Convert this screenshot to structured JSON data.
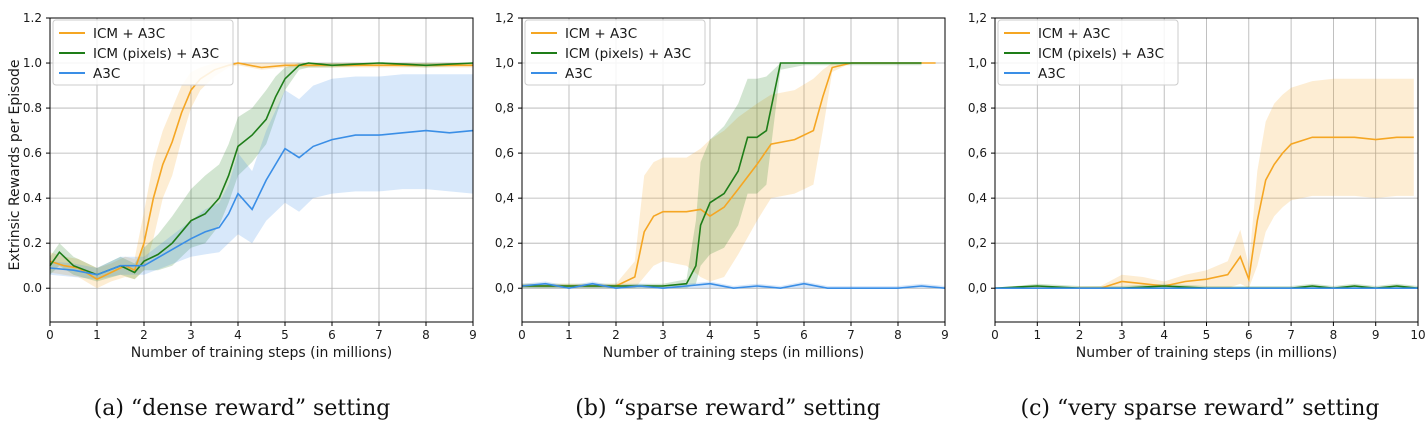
{
  "colors": {
    "icm": "#f5a623",
    "icm_pixels": "#1e7d18",
    "a3c": "#3a8ee6"
  },
  "chart_data": [
    {
      "type": "line",
      "caption": "(a) “dense reward” setting",
      "xlabel": "Number of training steps (in millions)",
      "ylabel": "Extrinsic Rewards per Episode",
      "xlim": [
        0,
        9
      ],
      "ylim": [
        -0.15,
        1.2
      ],
      "xticks": [
        0,
        1,
        2,
        3,
        4,
        5,
        6,
        7,
        8,
        9
      ],
      "yticks": [
        0.0,
        0.2,
        0.4,
        0.6,
        0.8,
        1.0,
        1.2
      ],
      "ytick_labels": [
        "0.0",
        "0.2",
        "0.4",
        "0.6",
        "0.8",
        "1.0",
        "1.2"
      ],
      "legend": [
        "ICM + A3C",
        "ICM (pixels) + A3C",
        "A3C"
      ],
      "legend_position": "top-left",
      "series": [
        {
          "name": "ICM + A3C",
          "color_key": "icm",
          "x": [
            0,
            0.3,
            0.6,
            1.0,
            1.3,
            1.6,
            1.8,
            2.0,
            2.2,
            2.4,
            2.6,
            2.8,
            3.0,
            3.2,
            3.5,
            3.8,
            4.0,
            4.5,
            5,
            6,
            7,
            8,
            9
          ],
          "y": [
            0.12,
            0.1,
            0.09,
            0.04,
            0.07,
            0.1,
            0.08,
            0.2,
            0.4,
            0.55,
            0.65,
            0.78,
            0.88,
            0.93,
            0.97,
            0.99,
            1.0,
            0.98,
            0.99,
            0.99,
            0.99,
            0.99,
            0.99
          ],
          "low": [
            0.07,
            0.06,
            0.05,
            0.0,
            0.03,
            0.05,
            0.04,
            0.08,
            0.22,
            0.4,
            0.5,
            0.66,
            0.8,
            0.88,
            0.94,
            0.98,
            0.99,
            0.97,
            0.98,
            0.98,
            0.98,
            0.98,
            0.98
          ],
          "high": [
            0.16,
            0.14,
            0.13,
            0.09,
            0.11,
            0.14,
            0.13,
            0.34,
            0.56,
            0.7,
            0.8,
            0.9,
            0.96,
            0.98,
            1.0,
            1.0,
            1.0,
            1.0,
            1.0,
            1.0,
            1.0,
            1.0,
            1.0
          ]
        },
        {
          "name": "ICM (pixels) + A3C",
          "color_key": "icm_pixels",
          "x": [
            0,
            0.2,
            0.5,
            1.0,
            1.5,
            1.8,
            2.0,
            2.3,
            2.6,
            3.0,
            3.3,
            3.6,
            3.8,
            4.0,
            4.3,
            4.6,
            4.8,
            5.0,
            5.3,
            5.5,
            6,
            7,
            8,
            9
          ],
          "y": [
            0.1,
            0.16,
            0.1,
            0.06,
            0.1,
            0.07,
            0.12,
            0.15,
            0.2,
            0.3,
            0.33,
            0.4,
            0.5,
            0.63,
            0.68,
            0.75,
            0.85,
            0.93,
            0.99,
            1.0,
            0.99,
            1.0,
            0.99,
            1.0
          ],
          "low": [
            0.06,
            0.1,
            0.06,
            0.03,
            0.06,
            0.04,
            0.08,
            0.08,
            0.1,
            0.18,
            0.2,
            0.28,
            0.38,
            0.5,
            0.56,
            0.64,
            0.76,
            0.88,
            0.97,
            0.98,
            0.98,
            0.99,
            0.98,
            0.99
          ],
          "high": [
            0.14,
            0.2,
            0.14,
            0.09,
            0.14,
            0.11,
            0.18,
            0.24,
            0.32,
            0.44,
            0.5,
            0.55,
            0.64,
            0.76,
            0.8,
            0.88,
            0.94,
            0.98,
            1.0,
            1.0,
            1.0,
            1.0,
            1.0,
            1.0
          ]
        },
        {
          "name": "A3C",
          "color_key": "a3c",
          "x": [
            0,
            0.5,
            1.0,
            1.5,
            2.0,
            2.5,
            3.0,
            3.3,
            3.6,
            3.8,
            4.0,
            4.3,
            4.6,
            5.0,
            5.3,
            5.6,
            6.0,
            6.5,
            7.0,
            7.5,
            8.0,
            8.5,
            9.0
          ],
          "y": [
            0.09,
            0.08,
            0.06,
            0.1,
            0.1,
            0.16,
            0.22,
            0.25,
            0.27,
            0.33,
            0.42,
            0.35,
            0.48,
            0.62,
            0.58,
            0.63,
            0.66,
            0.68,
            0.68,
            0.69,
            0.7,
            0.69,
            0.7
          ],
          "low": [
            0.06,
            0.05,
            0.04,
            0.06,
            0.06,
            0.1,
            0.14,
            0.15,
            0.16,
            0.2,
            0.24,
            0.2,
            0.3,
            0.38,
            0.34,
            0.4,
            0.42,
            0.43,
            0.43,
            0.44,
            0.44,
            0.43,
            0.42
          ],
          "high": [
            0.12,
            0.11,
            0.09,
            0.14,
            0.14,
            0.22,
            0.3,
            0.35,
            0.38,
            0.46,
            0.6,
            0.52,
            0.7,
            0.88,
            0.84,
            0.9,
            0.93,
            0.94,
            0.94,
            0.95,
            0.95,
            0.95,
            0.95
          ]
        }
      ]
    },
    {
      "type": "line",
      "caption": "(b) “sparse reward” setting",
      "xlabel": "Number of training steps (in millions)",
      "ylabel": "",
      "xlim": [
        0,
        9
      ],
      "ylim": [
        -0.15,
        1.2
      ],
      "xticks": [
        0,
        1,
        2,
        3,
        4,
        5,
        6,
        7,
        8,
        9
      ],
      "yticks": [
        0.0,
        0.2,
        0.4,
        0.6,
        0.8,
        1.0,
        1.2
      ],
      "ytick_labels": [
        "0,0",
        "0,2",
        "0,4",
        "0,6",
        "0,8",
        "1,0",
        "1,2"
      ],
      "legend": [
        "ICM + A3C",
        "ICM (pixels) + A3C",
        "A3C"
      ],
      "legend_position": "top-left",
      "series": [
        {
          "name": "ICM + A3C",
          "color_key": "icm",
          "x": [
            0,
            1.0,
            2.0,
            2.4,
            2.6,
            2.8,
            3.0,
            3.5,
            3.8,
            4.0,
            4.3,
            4.6,
            5.0,
            5.3,
            5.8,
            6.2,
            6.4,
            6.6,
            7.0,
            8.0,
            8.8
          ],
          "y": [
            0.01,
            0.01,
            0.01,
            0.05,
            0.25,
            0.32,
            0.34,
            0.34,
            0.35,
            0.32,
            0.36,
            0.44,
            0.55,
            0.64,
            0.66,
            0.7,
            0.85,
            0.98,
            1.0,
            1.0,
            1.0
          ],
          "low": [
            0.0,
            0.0,
            0.0,
            0.0,
            0.05,
            0.1,
            0.12,
            0.1,
            0.05,
            0.03,
            0.05,
            0.15,
            0.3,
            0.4,
            0.42,
            0.46,
            0.7,
            0.96,
            1.0,
            1.0,
            1.0
          ],
          "high": [
            0.02,
            0.02,
            0.02,
            0.12,
            0.5,
            0.56,
            0.58,
            0.58,
            0.62,
            0.66,
            0.7,
            0.76,
            0.82,
            0.86,
            0.88,
            0.93,
            0.97,
            1.0,
            1.0,
            1.0,
            1.0
          ]
        },
        {
          "name": "ICM (pixels) + A3C",
          "color_key": "icm_pixels",
          "x": [
            0,
            2.0,
            3.0,
            3.5,
            3.7,
            3.8,
            4.0,
            4.3,
            4.6,
            4.8,
            5.0,
            5.2,
            5.5,
            6.0,
            7.0,
            8.0,
            8.5
          ],
          "y": [
            0.01,
            0.01,
            0.01,
            0.02,
            0.1,
            0.28,
            0.38,
            0.42,
            0.52,
            0.67,
            0.67,
            0.7,
            1.0,
            1.0,
            1.0,
            1.0,
            1.0
          ],
          "low": [
            0.0,
            0.0,
            0.0,
            0.0,
            0.02,
            0.1,
            0.15,
            0.18,
            0.28,
            0.42,
            0.42,
            0.46,
            0.97,
            0.99,
            0.99,
            0.99,
            0.99
          ],
          "high": [
            0.02,
            0.02,
            0.02,
            0.04,
            0.3,
            0.56,
            0.66,
            0.72,
            0.82,
            0.93,
            0.93,
            0.94,
            1.0,
            1.0,
            1.0,
            1.0,
            1.0
          ]
        },
        {
          "name": "A3C",
          "color_key": "a3c",
          "x": [
            0,
            0.5,
            1.0,
            1.5,
            2.0,
            2.5,
            3.0,
            3.5,
            4.0,
            4.5,
            5.0,
            5.5,
            6.0,
            6.5,
            7.0,
            7.5,
            8.0,
            8.5,
            9.0
          ],
          "y": [
            0.01,
            0.02,
            0.0,
            0.02,
            0.0,
            0.01,
            0.0,
            0.01,
            0.02,
            0.0,
            0.01,
            0.0,
            0.02,
            0.0,
            0.0,
            0.0,
            0.0,
            0.01,
            0.0
          ],
          "low": [
            0,
            0,
            0,
            0,
            0,
            0,
            0,
            0,
            0,
            0,
            0,
            0,
            0,
            0,
            0,
            0,
            0,
            0,
            0
          ],
          "high": [
            0.02,
            0.03,
            0.01,
            0.03,
            0.01,
            0.02,
            0.01,
            0.02,
            0.03,
            0.01,
            0.02,
            0.01,
            0.03,
            0.01,
            0.01,
            0.01,
            0.01,
            0.02,
            0.01
          ]
        }
      ]
    },
    {
      "type": "line",
      "caption": "(c) “very sparse reward” setting",
      "xlabel": "Number of training steps (in millions)",
      "ylabel": "",
      "xlim": [
        0,
        10
      ],
      "ylim": [
        -0.15,
        1.2
      ],
      "xticks": [
        0,
        1,
        2,
        3,
        4,
        5,
        6,
        7,
        8,
        9,
        10
      ],
      "yticks": [
        0.0,
        0.2,
        0.4,
        0.6,
        0.8,
        1.0,
        1.2
      ],
      "ytick_labels": [
        "0,0",
        "0,2",
        "0,4",
        "0,6",
        "0,8",
        "1,0",
        "1,2"
      ],
      "legend": [
        "ICM + A3C",
        "ICM (pixels) + A3C",
        "A3C"
      ],
      "legend_position": "top-left",
      "series": [
        {
          "name": "ICM + A3C",
          "color_key": "icm",
          "x": [
            0,
            2.5,
            3.0,
            3.5,
            4.0,
            4.5,
            5.0,
            5.5,
            5.8,
            6.0,
            6.2,
            6.4,
            6.6,
            6.8,
            7.0,
            7.5,
            8.0,
            8.5,
            9.0,
            9.5,
            9.9
          ],
          "y": [
            0.0,
            0.0,
            0.03,
            0.02,
            0.01,
            0.03,
            0.04,
            0.06,
            0.14,
            0.04,
            0.3,
            0.48,
            0.55,
            0.6,
            0.64,
            0.67,
            0.67,
            0.67,
            0.66,
            0.67,
            0.67
          ],
          "low": [
            0,
            0,
            0,
            0,
            0,
            0,
            0,
            0,
            0.02,
            0.0,
            0.1,
            0.25,
            0.32,
            0.36,
            0.39,
            0.41,
            0.41,
            0.41,
            0.4,
            0.41,
            0.41
          ],
          "high": [
            0.0,
            0.01,
            0.06,
            0.05,
            0.03,
            0.06,
            0.08,
            0.12,
            0.26,
            0.1,
            0.52,
            0.74,
            0.82,
            0.86,
            0.89,
            0.92,
            0.93,
            0.93,
            0.93,
            0.93,
            0.93
          ]
        },
        {
          "name": "ICM (pixels) + A3C",
          "color_key": "icm_pixels",
          "x": [
            0,
            1.0,
            2.0,
            3.0,
            4.0,
            5.0,
            6.0,
            7.0,
            7.5,
            8.0,
            8.5,
            9.0,
            9.5,
            10
          ],
          "y": [
            0.0,
            0.01,
            0.0,
            0.0,
            0.01,
            0.0,
            0.0,
            0.0,
            0.01,
            0.0,
            0.01,
            0.0,
            0.01,
            0.0
          ],
          "low": [
            0,
            0,
            0,
            0,
            0,
            0,
            0,
            0,
            0,
            0,
            0,
            0,
            0,
            0
          ],
          "high": [
            0.0,
            0.02,
            0.01,
            0.01,
            0.02,
            0.01,
            0.01,
            0.01,
            0.02,
            0.01,
            0.02,
            0.01,
            0.02,
            0.01
          ]
        },
        {
          "name": "A3C",
          "color_key": "a3c",
          "x": [
            0,
            2.0,
            4.0,
            6.0,
            8.0,
            10
          ],
          "y": [
            0.0,
            0.0,
            0.0,
            0.0,
            0.0,
            0.0
          ],
          "low": [
            0,
            0,
            0,
            0,
            0,
            0
          ],
          "high": [
            0.005,
            0.005,
            0.005,
            0.005,
            0.005,
            0.005
          ]
        }
      ]
    }
  ]
}
